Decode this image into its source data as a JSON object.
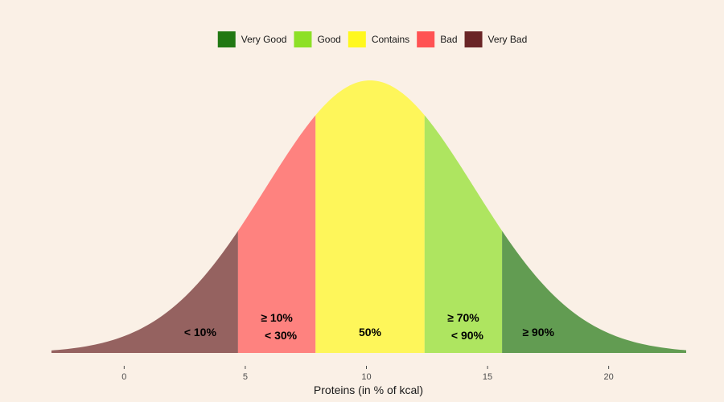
{
  "chart_data": {
    "type": "area",
    "title": "",
    "xlabel": "Proteins (in % of kcal)",
    "ylabel": "",
    "xlim": [
      -3,
      23.2
    ],
    "x_ticks": [
      "0",
      "5",
      "10",
      "15",
      "20"
    ],
    "grid": false,
    "legend_position": "top",
    "distribution": {
      "kind": "normal",
      "mean": 10.15,
      "sd": 4.3
    },
    "legend": [
      {
        "label": "Very Good",
        "color": "#217813"
      },
      {
        "label": "Good",
        "color": "#8DE026"
      },
      {
        "label": "Contains",
        "color": "#FFF81E"
      },
      {
        "label": "Bad",
        "color": "#FF5253"
      },
      {
        "label": "Very Bad",
        "color": "#6A2526"
      }
    ],
    "regions": [
      {
        "category": "Very Bad",
        "x_start": -3,
        "x_end": 4.7,
        "color": "#6A2526",
        "opacity": 0.7,
        "label_lines": [
          "< 10%"
        ]
      },
      {
        "category": "Bad",
        "x_start": 4.7,
        "x_end": 7.9,
        "color": "#FF5253",
        "opacity": 0.7,
        "label_lines": [
          "≥ 10%",
          "< 30%"
        ]
      },
      {
        "category": "Contains",
        "x_start": 7.9,
        "x_end": 12.4,
        "color": "#FFF81E",
        "opacity": 0.7,
        "label_lines": [
          "50%"
        ]
      },
      {
        "category": "Good",
        "x_start": 12.4,
        "x_end": 15.6,
        "color": "#8DE026",
        "opacity": 0.7,
        "label_lines": [
          "≥ 70%",
          "< 90%"
        ]
      },
      {
        "category": "Very Good",
        "x_start": 15.6,
        "x_end": 23.2,
        "color": "#217813",
        "opacity": 0.7,
        "label_lines": [
          "≥ 90%"
        ]
      }
    ]
  }
}
